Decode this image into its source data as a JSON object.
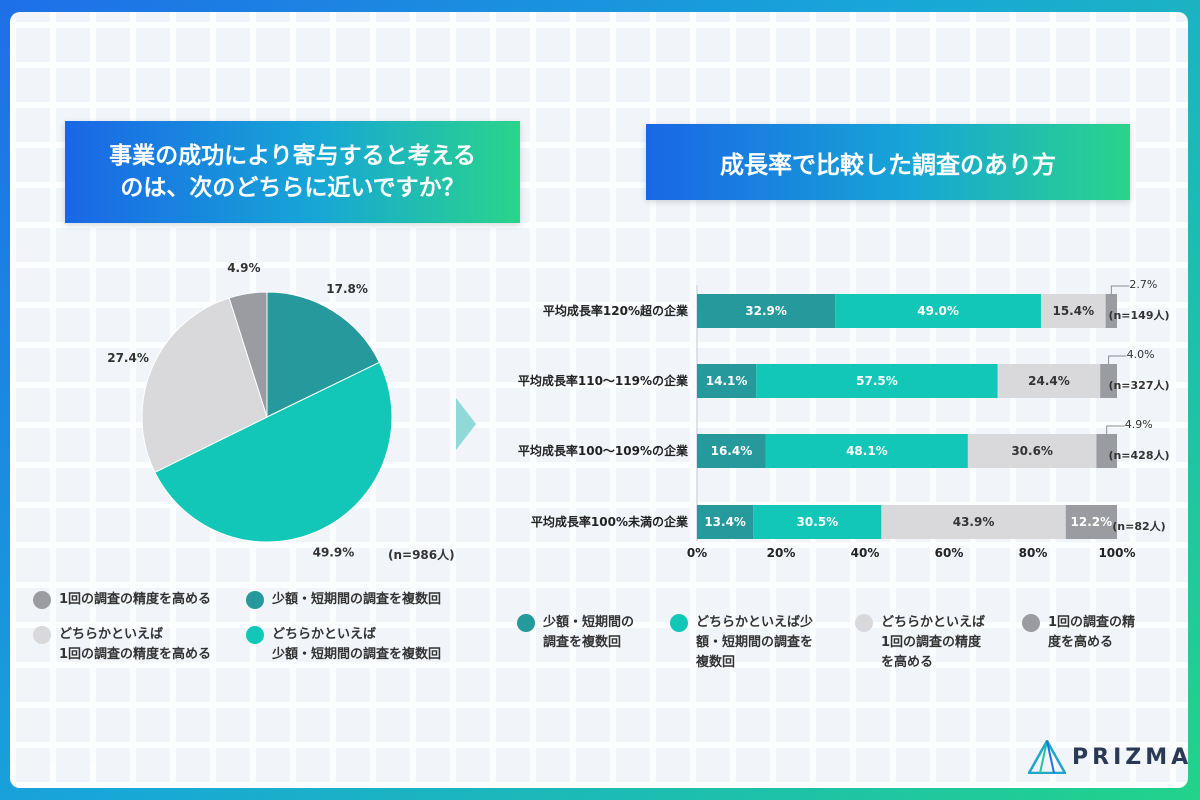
{
  "left": {
    "title_line1": "事業の成功により寄与すると考える",
    "title_line2": "のは、次のどちらに近いですか？",
    "n_label": "(n=986人)"
  },
  "right": {
    "title": "成長率で比較した調査のあり方"
  },
  "colors": {
    "dark_teal": "#25999b",
    "teal": "#13c7b8",
    "light_gray": "#d9d9db",
    "gray": "#9b9ca1"
  },
  "pie_legend": [
    {
      "label": "1回の調査の精度を高める",
      "color": "#9b9ca1"
    },
    {
      "label": "少額・短期間の調査を複数回",
      "color": "#25999b"
    },
    {
      "label_line1": "どちらかといえば",
      "label_line2": "1回の調査の精度を高める",
      "color": "#d9d9db"
    },
    {
      "label_line1": "どちらかといえば",
      "label_line2": "少額・短期間の調査を複数回",
      "color": "#13c7b8"
    }
  ],
  "bar_legend": [
    {
      "line1": "少額・短期間の",
      "line2": "調査を複数回",
      "line3": "",
      "color": "#25999b"
    },
    {
      "line1": "どちらかといえば少",
      "line2": "額・短期間の調査を",
      "line3": "複数回",
      "color": "#13c7b8"
    },
    {
      "line1": "どちらかといえば",
      "line2": "1回の調査の精度",
      "line3": "を高める",
      "color": "#d9d9db"
    },
    {
      "line1": "1回の調査の精",
      "line2": "度を高める",
      "line3": "",
      "color": "#9b9ca1"
    }
  ],
  "chart_data": [
    {
      "type": "pie",
      "slices": [
        {
          "name": "少額・短期間の調査を複数回",
          "value": 17.8,
          "label": "17.8%",
          "color": "#25999b"
        },
        {
          "name": "どちらかといえば少額・短期間の調査を複数回",
          "value": 49.9,
          "label": "49.9%",
          "color": "#13c7b8"
        },
        {
          "name": "どちらかといえば1回の調査の精度を高める",
          "value": 27.4,
          "label": "27.4%",
          "color": "#d9d9db"
        },
        {
          "name": "1回の調査の精度を高める",
          "value": 4.9,
          "label": "4.9%",
          "color": "#9b9ca1"
        }
      ]
    },
    {
      "type": "bar",
      "orientation": "horizontal",
      "stacked": true,
      "categories": [
        "平均成長率120%超の企業",
        "平均成長率110〜119%の企業",
        "平均成長率100〜109%の企業",
        "平均成長率100%未満の企業"
      ],
      "n_labels": [
        "(n=149人)",
        "(n=327人)",
        "(n=428人)",
        "(n=82人)"
      ],
      "series": [
        {
          "name": "少額・短期間の調査を複数回",
          "color": "#25999b",
          "values": [
            32.9,
            14.1,
            16.4,
            13.4
          ]
        },
        {
          "name": "どちらかといえば少額・短期間の調査を複数回",
          "color": "#13c7b8",
          "values": [
            49.0,
            57.5,
            48.1,
            30.5
          ]
        },
        {
          "name": "どちらかといえば1回の調査の精度を高める",
          "color": "#d9d9db",
          "values": [
            15.4,
            24.4,
            30.6,
            43.9
          ]
        },
        {
          "name": "1回の調査の精度を高める",
          "color": "#9b9ca1",
          "values": [
            2.7,
            4.0,
            4.9,
            12.2
          ]
        }
      ],
      "value_labels": [
        [
          "32.9%",
          "49.0%",
          "15.4%",
          "2.7%"
        ],
        [
          "14.1%",
          "57.5%",
          "24.4%",
          "4.0%"
        ],
        [
          "16.4%",
          "48.1%",
          "30.6%",
          "4.9%"
        ],
        [
          "13.4%",
          "30.5%",
          "43.9%",
          "12.2%"
        ]
      ],
      "xticks": [
        "0%",
        "20%",
        "40%",
        "60%",
        "80%",
        "100%"
      ],
      "xlim": [
        0,
        100
      ]
    }
  ],
  "brand": {
    "name": "PRIZMA"
  }
}
